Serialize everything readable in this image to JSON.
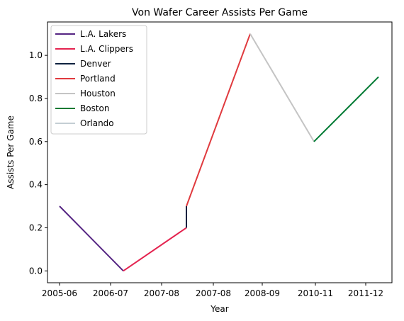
{
  "chart_data": {
    "type": "line",
    "title": "Von Wafer Career Assists Per Game",
    "xlabel": "Year",
    "ylabel": "Assists Per Game",
    "x_tick_labels": [
      "2005-06",
      "2006-07",
      "2007-08",
      "2007-08",
      "2008-09",
      "2010-11",
      "2011-12"
    ],
    "ylim": [
      -0.055,
      1.155
    ],
    "y_ticks": [
      0.0,
      0.2,
      0.4,
      0.6,
      0.8,
      1.0
    ],
    "y_tick_labels": [
      "0.0",
      "0.2",
      "0.4",
      "0.6",
      "0.8",
      "1.0"
    ],
    "grid": false,
    "legend_position": "top-left",
    "series": [
      {
        "name": "L.A. Lakers",
        "color": "#552583",
        "x": [
          0,
          1
        ],
        "y": [
          0.3,
          0.0
        ]
      },
      {
        "name": "L.A. Clippers",
        "color": "#E4234F",
        "x": [
          1,
          2
        ],
        "y": [
          0.0,
          0.2
        ]
      },
      {
        "name": "Denver",
        "color": "#0E2240",
        "x": [
          2,
          2
        ],
        "y": [
          0.2,
          0.3
        ]
      },
      {
        "name": "Portland",
        "color": "#E03A3E",
        "x": [
          2,
          3
        ],
        "y": [
          0.3,
          1.1
        ]
      },
      {
        "name": "Houston",
        "color": "#C4C4C4",
        "x": [
          3,
          4
        ],
        "y": [
          1.1,
          0.6
        ]
      },
      {
        "name": "Boston",
        "color": "#007A33",
        "x": [
          4,
          5
        ],
        "y": [
          0.6,
          0.9
        ]
      },
      {
        "name": "Orlando",
        "color": "#C4CED4",
        "x": [],
        "y": []
      }
    ]
  }
}
